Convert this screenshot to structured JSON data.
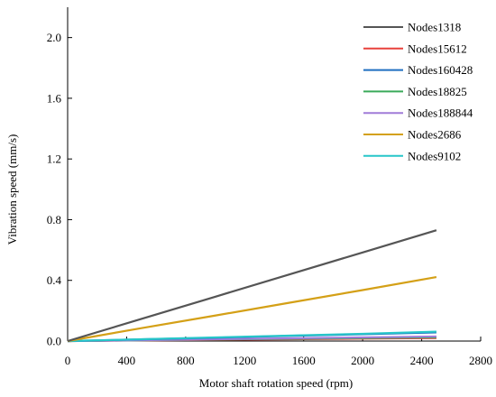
{
  "chart_data": {
    "type": "line",
    "title": "",
    "xlabel": "Motor shaft rotation speed (rpm)",
    "ylabel": "Vibration speed (mm/s)",
    "xlim": [
      0,
      2800
    ],
    "ylim": [
      0,
      2.2
    ],
    "x_ticks": [
      0,
      400,
      800,
      1200,
      1600,
      2000,
      2400,
      2800
    ],
    "y_ticks": [
      0.0,
      0.4,
      0.8,
      1.2,
      1.6,
      2.0
    ],
    "x_tick_labels": [
      "0",
      "400",
      "800",
      "1200",
      "1600",
      "2000",
      "2400",
      "2800"
    ],
    "y_tick_labels": [
      "0.0",
      "0.4",
      "0.8",
      "1.2",
      "1.6",
      "2.0"
    ],
    "grid": false,
    "legend_position": "top-right",
    "series": [
      {
        "name": "Nodes1318",
        "color": "#555555",
        "x": [
          0,
          500,
          1000,
          1500,
          2000,
          2500
        ],
        "y": [
          0,
          0.146,
          0.292,
          0.438,
          0.584,
          0.73
        ]
      },
      {
        "name": "Nodes15612",
        "color": "#e8413b",
        "x": [
          0,
          500,
          1000,
          1500,
          2000,
          2500
        ],
        "y": [
          0,
          0.004,
          0.008,
          0.012,
          0.016,
          0.02
        ]
      },
      {
        "name": "Nodes160428",
        "color": "#1f6fc0",
        "x": [
          0,
          500,
          1000,
          1500,
          2000,
          2500
        ],
        "y": [
          0,
          0.011,
          0.022,
          0.034,
          0.045,
          0.057
        ]
      },
      {
        "name": "Nodes18825",
        "color": "#3aaa5a",
        "x": [
          0,
          500,
          1000,
          1500,
          2000,
          2500
        ],
        "y": [
          0,
          0.005,
          0.01,
          0.015,
          0.02,
          0.025
        ]
      },
      {
        "name": "Nodes188844",
        "color": "#a07bd8",
        "x": [
          0,
          500,
          1000,
          1500,
          2000,
          2500
        ],
        "y": [
          0,
          0.006,
          0.012,
          0.018,
          0.024,
          0.03
        ]
      },
      {
        "name": "Nodes2686",
        "color": "#d4a017",
        "x": [
          0,
          500,
          1000,
          1500,
          2000,
          2500
        ],
        "y": [
          0,
          0.085,
          0.168,
          0.252,
          0.336,
          0.422
        ]
      },
      {
        "name": "Nodes9102",
        "color": "#27c6c9",
        "x": [
          0,
          500,
          1000,
          1500,
          2000,
          2500
        ],
        "y": [
          0,
          0.012,
          0.024,
          0.036,
          0.048,
          0.062
        ]
      }
    ]
  }
}
